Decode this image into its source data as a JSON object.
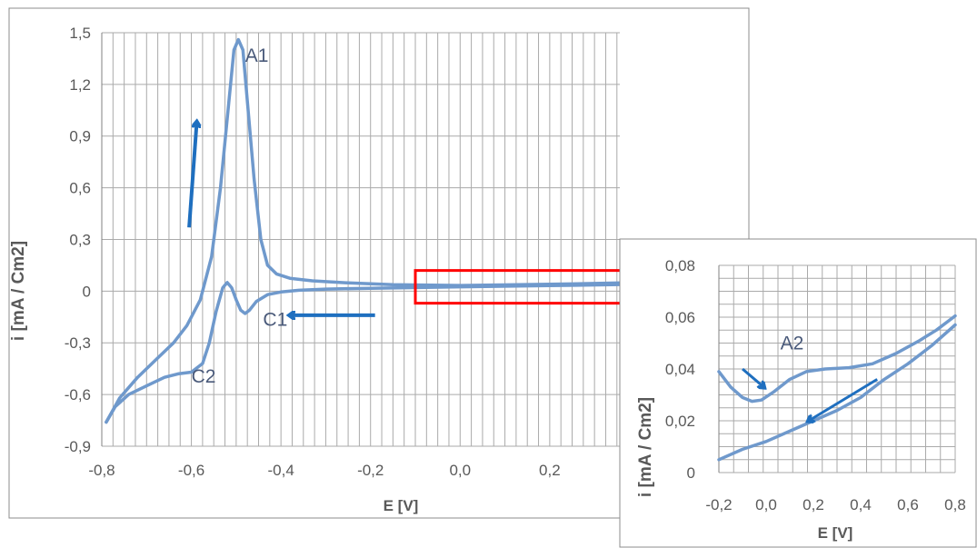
{
  "chart_data": [
    {
      "type": "line",
      "title": "",
      "xlabel": "E [V]",
      "ylabel": "i [mA / Cm2]",
      "xlim": [
        -0.8,
        0.6
      ],
      "ylim": [
        -0.9,
        1.5
      ],
      "x_ticks": [
        "-0,8",
        "-0,6",
        "-0,4",
        "-0,2",
        "0,0",
        "0,2",
        "0,4"
      ],
      "y_ticks": [
        "-0,9",
        "-0,6",
        "-0,3",
        "0",
        "0,3",
        "0,6",
        "0,9",
        "1,2",
        "1,5"
      ],
      "grid": true,
      "legend": "none",
      "series": [
        {
          "values": [
            [
              -0.79,
              -0.76
            ],
            [
              -0.76,
              -0.62
            ],
            [
              -0.72,
              -0.5
            ],
            [
              -0.68,
              -0.4
            ],
            [
              -0.64,
              -0.3
            ],
            [
              -0.61,
              -0.2
            ],
            [
              -0.58,
              -0.05
            ],
            [
              -0.555,
              0.2
            ],
            [
              -0.535,
              0.6
            ],
            [
              -0.52,
              1.0
            ],
            [
              -0.505,
              1.4
            ],
            [
              -0.495,
              1.46
            ],
            [
              -0.485,
              1.4
            ],
            [
              -0.475,
              1.1
            ],
            [
              -0.46,
              0.65
            ],
            [
              -0.445,
              0.3
            ],
            [
              -0.43,
              0.15
            ],
            [
              -0.41,
              0.1
            ],
            [
              -0.38,
              0.075
            ],
            [
              -0.33,
              0.06
            ],
            [
              -0.25,
              0.048
            ],
            [
              -0.15,
              0.038
            ],
            [
              0.0,
              0.033
            ],
            [
              0.2,
              0.04
            ],
            [
              0.4,
              0.05
            ],
            [
              0.6,
              0.06
            ]
          ]
        },
        {
          "values": [
            [
              0.6,
              0.058
            ],
            [
              0.4,
              0.04
            ],
            [
              0.2,
              0.032
            ],
            [
              0.0,
              0.025
            ],
            [
              -0.2,
              0.017
            ],
            [
              -0.3,
              0.012
            ],
            [
              -0.36,
              0.005
            ],
            [
              -0.4,
              -0.005
            ],
            [
              -0.43,
              -0.02
            ],
            [
              -0.455,
              -0.06
            ],
            [
              -0.47,
              -0.11
            ],
            [
              -0.48,
              -0.13
            ],
            [
              -0.49,
              -0.11
            ],
            [
              -0.5,
              -0.05
            ],
            [
              -0.51,
              0.02
            ],
            [
              -0.52,
              0.05
            ],
            [
              -0.53,
              0.02
            ],
            [
              -0.545,
              -0.12
            ],
            [
              -0.56,
              -0.3
            ],
            [
              -0.575,
              -0.42
            ],
            [
              -0.6,
              -0.47
            ],
            [
              -0.63,
              -0.48
            ],
            [
              -0.66,
              -0.5
            ],
            [
              -0.7,
              -0.55
            ],
            [
              -0.74,
              -0.6
            ],
            [
              -0.77,
              -0.67
            ],
            [
              -0.79,
              -0.76
            ]
          ]
        }
      ],
      "annotations": [
        {
          "text": "A1",
          "x": -0.48,
          "y": 1.33
        },
        {
          "text": "C1",
          "x": -0.44,
          "y": -0.2
        },
        {
          "text": "C2",
          "x": -0.6,
          "y": -0.53
        }
      ],
      "arrows": [
        {
          "from": [
            -0.605,
            0.37
          ],
          "to": [
            -0.588,
            0.98
          ]
        },
        {
          "from": [
            -0.19,
            -0.14
          ],
          "to": [
            -0.38,
            -0.14
          ]
        }
      ],
      "highlight_box": {
        "x": [
          -0.1,
          0.38
        ],
        "y": [
          -0.07,
          0.12
        ],
        "color": "#ff0000"
      }
    },
    {
      "type": "line",
      "title": "",
      "xlabel": "E [V]",
      "ylabel": "i [mA / Cm2]",
      "xlim": [
        -0.2,
        0.8
      ],
      "ylim": [
        0,
        0.08
      ],
      "x_ticks": [
        "-0,2",
        "0,0",
        "0,2",
        "0,4",
        "0,6",
        "0,8"
      ],
      "y_ticks": [
        "0",
        "0,02",
        "0,04",
        "0,06",
        "0,08"
      ],
      "grid": true,
      "legend": "none",
      "series": [
        {
          "values": [
            [
              -0.2,
              0.039
            ],
            [
              -0.15,
              0.033
            ],
            [
              -0.1,
              0.029
            ],
            [
              -0.06,
              0.0275
            ],
            [
              -0.02,
              0.028
            ],
            [
              0.03,
              0.031
            ],
            [
              0.1,
              0.036
            ],
            [
              0.17,
              0.039
            ],
            [
              0.25,
              0.04
            ],
            [
              0.35,
              0.0405
            ],
            [
              0.45,
              0.042
            ],
            [
              0.55,
              0.046
            ],
            [
              0.65,
              0.051
            ],
            [
              0.72,
              0.055
            ],
            [
              0.8,
              0.0605
            ]
          ]
        },
        {
          "values": [
            [
              0.8,
              0.057
            ],
            [
              0.7,
              0.049
            ],
            [
              0.6,
              0.042
            ],
            [
              0.5,
              0.036
            ],
            [
              0.4,
              0.029
            ],
            [
              0.3,
              0.024
            ],
            [
              0.2,
              0.02
            ],
            [
              0.1,
              0.016
            ],
            [
              0.0,
              0.012
            ],
            [
              -0.1,
              0.009
            ],
            [
              -0.2,
              0.005
            ]
          ]
        }
      ],
      "annotations": [
        {
          "text": "A2",
          "x": 0.06,
          "y": 0.0475
        }
      ],
      "arrows": [
        {
          "from": [
            -0.1,
            0.04
          ],
          "to": [
            -0.01,
            0.033
          ]
        },
        {
          "from": [
            0.47,
            0.036
          ],
          "to": [
            0.18,
            0.02
          ]
        }
      ]
    }
  ],
  "colors": {
    "line": "#6f99cc",
    "arrow": "#1f6fbf",
    "grid": "#aaaaaa",
    "text": "#595959",
    "label_text": "#4a5a7a",
    "border": "#8c8c8c"
  }
}
